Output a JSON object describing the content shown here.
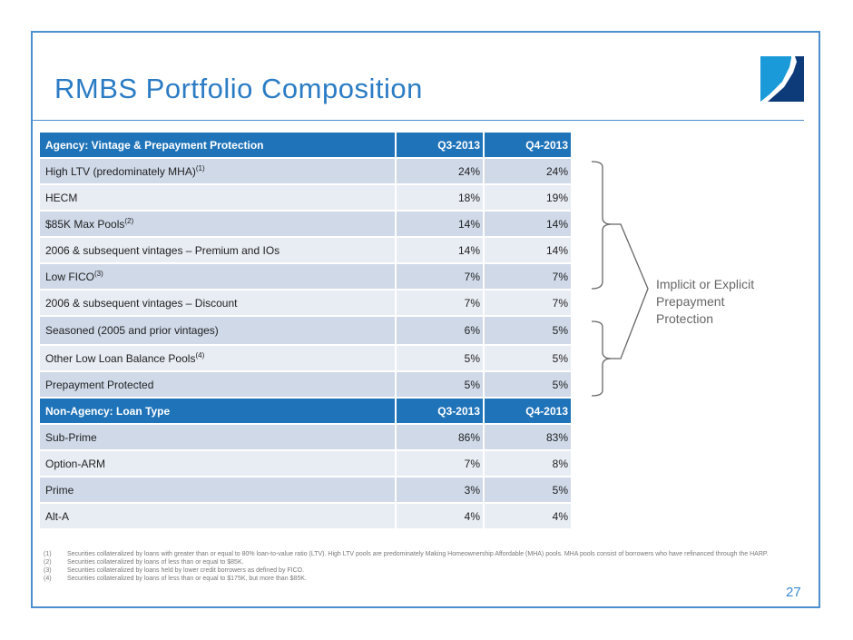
{
  "title": "RMBS Portfolio Composition",
  "agency": {
    "header": [
      "Agency: Vintage & Prepayment Protection",
      "Q3-2013",
      "Q4-2013"
    ],
    "rows": [
      {
        "label": "High LTV (predominately MHA)",
        "sup": "(1)",
        "q3": "24%",
        "q4": "24%"
      },
      {
        "label": "HECM",
        "sup": "",
        "q3": "18%",
        "q4": "19%"
      },
      {
        "label": "$85K Max Pools",
        "sup": "(2)",
        "q3": "14%",
        "q4": "14%"
      },
      {
        "label": "2006 & subsequent vintages – Premium and IOs",
        "sup": "",
        "q3": "14%",
        "q4": "14%"
      },
      {
        "label": "Low FICO",
        "sup": "(3)",
        "q3": "7%",
        "q4": "7%"
      },
      {
        "label": "2006 & subsequent vintages – Discount",
        "sup": "",
        "q3": "7%",
        "q4": "7%"
      },
      {
        "label": "Seasoned (2005 and prior vintages)",
        "sup": "",
        "q3": "6%",
        "q4": "5%"
      },
      {
        "label": "Other Low Loan Balance Pools",
        "sup": "(4)",
        "q3": "5%",
        "q4": "5%"
      },
      {
        "label": "Prepayment Protected",
        "sup": "",
        "q3": "5%",
        "q4": "5%"
      }
    ]
  },
  "nonagency": {
    "header": [
      "Non-Agency: Loan Type",
      "Q3-2013",
      "Q4-2013"
    ],
    "rows": [
      {
        "label": "Sub-Prime",
        "sup": "",
        "q3": "86%",
        "q4": "83%"
      },
      {
        "label": "Option-ARM",
        "sup": "",
        "q3": "7%",
        "q4": "8%"
      },
      {
        "label": "Prime",
        "sup": "",
        "q3": "3%",
        "q4": "5%"
      },
      {
        "label": "Alt-A",
        "sup": "",
        "q3": "4%",
        "q4": "4%"
      }
    ]
  },
  "bracket_label": "Implicit or Explicit Prepayment Protection",
  "footnotes": [
    {
      "k": "(1)",
      "t": "Securities collateralized by loans with greater than or equal to 80% loan-to-value ratio (LTV). High LTV pools are predominately Making Homeownership Affordable (MHA) pools. MHA pools consist of borrowers who have refinanced through the HARP."
    },
    {
      "k": "(2)",
      "t": "Securities collateralized by loans of less than or equal to $85K."
    },
    {
      "k": "(3)",
      "t": "Securities collateralized by loans held by lower credit borrowers as defined by FICO."
    },
    {
      "k": "(4)",
      "t": "Securities collateralized by loans of less than or equal to $175K, but more than $85K."
    }
  ],
  "page_number": "27",
  "colors": {
    "accent": "#2b7cc4",
    "header": "#1f73b9",
    "row_dark": "#cfd9e8",
    "row_light": "#e8ecf3",
    "logo_light": "#1a9ad8",
    "logo_dark": "#0d3a78"
  }
}
